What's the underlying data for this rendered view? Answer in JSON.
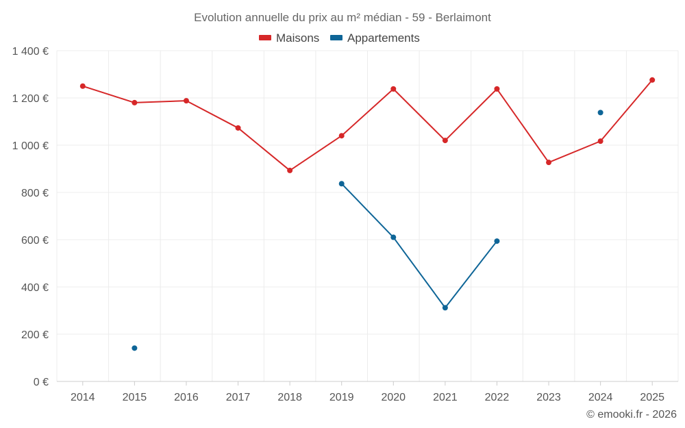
{
  "chart_data": {
    "type": "line",
    "title": "Evolution annuelle du prix au m² médian - 59 - Berlaimont",
    "categories": [
      "2014",
      "2015",
      "2016",
      "2017",
      "2018",
      "2019",
      "2020",
      "2021",
      "2022",
      "2023",
      "2024",
      "2025"
    ],
    "ylim": [
      0,
      1400
    ],
    "yticks": [
      0,
      200,
      400,
      600,
      800,
      1000,
      1200,
      1400
    ],
    "ytick_labels": [
      "0 €",
      "200 €",
      "400 €",
      "600 €",
      "800 €",
      "1 000 €",
      "1 200 €",
      "1 400 €"
    ],
    "grid": true,
    "legend_position": "top-center",
    "series": [
      {
        "name": "Maisons",
        "color": "#d62728",
        "values": [
          1250,
          1180,
          1188,
          1073,
          893,
          1040,
          1238,
          1020,
          1238,
          927,
          1017,
          1276
        ]
      },
      {
        "name": "Appartements",
        "color": "#0e6597",
        "values": [
          null,
          141,
          null,
          null,
          null,
          837,
          610,
          312,
          594,
          null,
          1138,
          null
        ]
      }
    ],
    "credit": "© emooki.fr - 2026"
  }
}
